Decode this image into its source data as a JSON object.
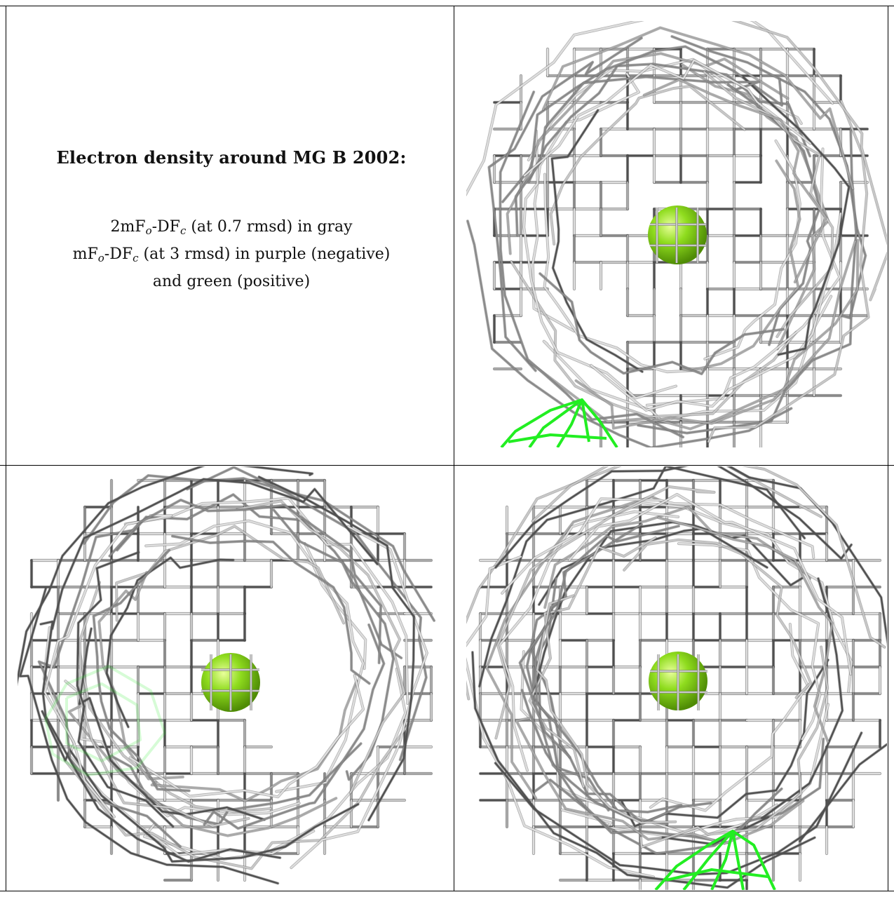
{
  "caption": {
    "title": "Electron density around MG B 2002:",
    "map1_prefix": "2mF",
    "map1_sub1": "o",
    "map1_mid": "-DF",
    "map1_sub2": "c",
    "map1_suffix": " (at 0.7 rmsd) in gray",
    "map2_prefix": "mF",
    "map2_sub1": "o",
    "map2_mid": "-DF",
    "map2_sub2": "c",
    "map2_suffix": " (at 3 rmsd) in purple (negative)",
    "map2_line2": "and green (positive)"
  },
  "colors": {
    "mesh_gray": "#8a8a8a",
    "mesh_dark": "#505050",
    "mesh_light": "#c8c8c8",
    "ion": "#8fdc1e",
    "positive_density": "#22ee22"
  }
}
